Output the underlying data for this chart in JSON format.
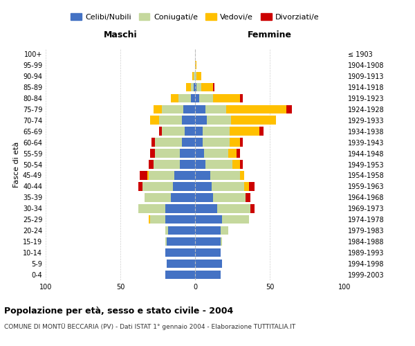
{
  "age_groups": [
    "0-4",
    "5-9",
    "10-14",
    "15-19",
    "20-24",
    "25-29",
    "30-34",
    "35-39",
    "40-44",
    "45-49",
    "50-54",
    "55-59",
    "60-64",
    "65-69",
    "70-74",
    "75-79",
    "80-84",
    "85-89",
    "90-94",
    "95-99",
    "100+"
  ],
  "birth_years": [
    "1999-2003",
    "1994-1998",
    "1989-1993",
    "1984-1988",
    "1979-1983",
    "1974-1978",
    "1969-1973",
    "1964-1968",
    "1959-1963",
    "1954-1958",
    "1949-1953",
    "1944-1948",
    "1939-1943",
    "1934-1938",
    "1929-1933",
    "1924-1928",
    "1919-1923",
    "1914-1918",
    "1909-1913",
    "1904-1908",
    "≤ 1903"
  ],
  "colors": {
    "celibi": "#4472c4",
    "coniugati": "#c5d89d",
    "vedovi": "#ffc000",
    "divorziati": "#cc0000"
  },
  "maschi": {
    "celibi": [
      20,
      19,
      20,
      19,
      18,
      20,
      20,
      16,
      15,
      14,
      10,
      10,
      9,
      7,
      9,
      8,
      3,
      1,
      0,
      0,
      0
    ],
    "coniugati": [
      0,
      0,
      0,
      1,
      2,
      10,
      18,
      18,
      20,
      17,
      18,
      17,
      18,
      15,
      15,
      14,
      8,
      2,
      1,
      0,
      0
    ],
    "vedovi": [
      0,
      0,
      0,
      0,
      0,
      1,
      0,
      0,
      0,
      1,
      0,
      0,
      0,
      0,
      6,
      6,
      5,
      3,
      1,
      0,
      0
    ],
    "divorziati": [
      0,
      0,
      0,
      0,
      0,
      0,
      0,
      0,
      3,
      5,
      3,
      3,
      2,
      2,
      0,
      0,
      0,
      0,
      0,
      0,
      0
    ]
  },
  "femmine": {
    "celibi": [
      17,
      18,
      17,
      17,
      17,
      18,
      15,
      12,
      11,
      10,
      7,
      6,
      5,
      5,
      8,
      7,
      3,
      1,
      0,
      0,
      0
    ],
    "coniugati": [
      0,
      0,
      0,
      1,
      5,
      18,
      22,
      22,
      22,
      20,
      18,
      16,
      18,
      18,
      16,
      14,
      9,
      3,
      1,
      0,
      0
    ],
    "vedovi": [
      0,
      0,
      0,
      0,
      0,
      0,
      0,
      0,
      3,
      3,
      5,
      6,
      7,
      20,
      30,
      40,
      18,
      8,
      3,
      1,
      0
    ],
    "divorziati": [
      0,
      0,
      0,
      0,
      0,
      0,
      3,
      3,
      4,
      0,
      2,
      2,
      2,
      3,
      0,
      4,
      2,
      1,
      0,
      0,
      0
    ]
  },
  "title": "Popolazione per età, sesso e stato civile - 2004",
  "subtitle": "COMUNE DI MONTÜ BECCARIA (PV) - Dati ISTAT 1° gennaio 2004 - Elaborazione TUTTITALIA.IT",
  "xlabel_left": "Maschi",
  "xlabel_right": "Femmine",
  "ylabel_left": "Fasce di età",
  "xlim": 100,
  "legend_labels": [
    "Celibi/Nubili",
    "Coniugati/e",
    "Vedovi/e",
    "Divorziati/e"
  ],
  "bg_color": "#ffffff",
  "grid_color": "#cccccc"
}
